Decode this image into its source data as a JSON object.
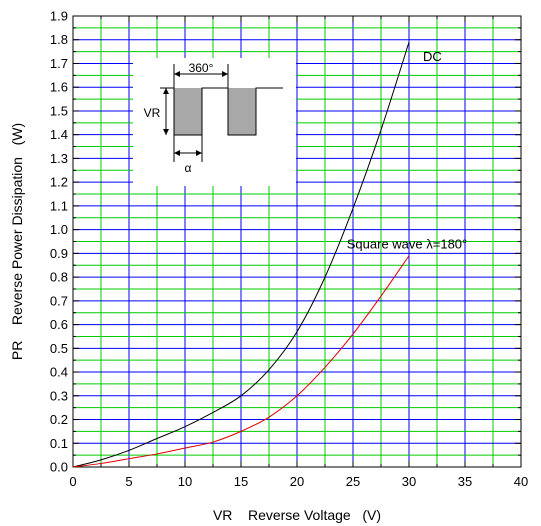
{
  "chart_data": {
    "type": "line",
    "xlabel": "VR    Reverse Voltage   (V)",
    "ylabel": "PR    Reverse Power Dissipation   (W)",
    "xlim": [
      0,
      40
    ],
    "ylim": [
      0,
      1.9
    ],
    "x_ticks": [
      "0",
      "5",
      "10",
      "15",
      "20",
      "25",
      "30",
      "35",
      "40"
    ],
    "y_ticks": [
      "0.0",
      "0.1",
      "0.2",
      "0.3",
      "0.4",
      "0.5",
      "0.6",
      "0.7",
      "0.8",
      "0.9",
      "1.0",
      "1.1",
      "1.2",
      "1.3",
      "1.4",
      "1.5",
      "1.6",
      "1.7",
      "1.8",
      "1.9"
    ],
    "grid": true,
    "series": [
      {
        "name": "DC",
        "color": "#000000",
        "x": [
          0,
          2.5,
          5,
          7.5,
          10,
          12.5,
          15,
          17.5,
          20,
          22.5,
          25,
          27.5,
          30
        ],
        "y": [
          0,
          0.03,
          0.07,
          0.12,
          0.17,
          0.23,
          0.3,
          0.41,
          0.57,
          0.8,
          1.09,
          1.42,
          1.79
        ]
      },
      {
        "name": "Square wave λ=180°",
        "color": "#e00000",
        "x": [
          0,
          2.5,
          5,
          7.5,
          10,
          12.5,
          15,
          17.5,
          20,
          22.5,
          25,
          27.5,
          30
        ],
        "y": [
          0,
          0.015,
          0.035,
          0.055,
          0.08,
          0.105,
          0.15,
          0.21,
          0.3,
          0.42,
          0.56,
          0.72,
          0.89
        ]
      }
    ],
    "annotations": {
      "dc_label": "DC",
      "square_label": "Square wave λ=180°"
    },
    "inset": {
      "period_label": "360°",
      "amplitude_label": "VR",
      "width_label": "α"
    }
  }
}
